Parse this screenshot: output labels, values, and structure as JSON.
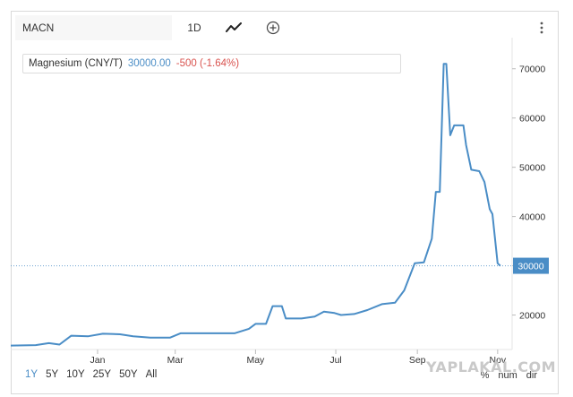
{
  "toolbar": {
    "symbol": "MACN",
    "interval_label": "1D",
    "chart_type_icon": "line-chart-icon",
    "compare_icon": "plus-circle-icon",
    "menu_icon": "more-vertical-icon"
  },
  "legend": {
    "name": "Magnesium (CNY/T)",
    "value": "30000.00",
    "change": "-500 (-1.64%)"
  },
  "colors": {
    "line": "#4a8dc6",
    "last_price_bg": "#4a8dc6",
    "change_negative": "#d9534f"
  },
  "ranges": {
    "items": [
      "1Y",
      "5Y",
      "10Y",
      "25Y",
      "50Y",
      "All"
    ],
    "active": "1Y"
  },
  "scales": {
    "items": [
      "%",
      "num",
      "dir"
    ]
  },
  "watermark": "YAPLAKAL.COM",
  "chart_data": {
    "type": "line",
    "title": "",
    "xlabel": "",
    "ylabel": "",
    "x_ticks": [
      {
        "label": "Jan",
        "date": "2021-01-01"
      },
      {
        "label": "Mar",
        "date": "2021-03-01"
      },
      {
        "label": "May",
        "date": "2021-05-01"
      },
      {
        "label": "Jul",
        "date": "2021-07-01"
      },
      {
        "label": "Sep",
        "date": "2021-09-01"
      },
      {
        "label": "Nov",
        "date": "2021-11-01"
      }
    ],
    "y_ticks": [
      20000,
      30000,
      40000,
      50000,
      60000,
      70000
    ],
    "x_range": [
      "2020-10-27",
      "2021-11-12"
    ],
    "ylim": [
      13000,
      74500
    ],
    "last_price_label": "30000",
    "last_price": 30000,
    "grid": false,
    "axis_side": "right",
    "series": [
      {
        "points": [
          [
            "2020-10-27",
            13800
          ],
          [
            "2020-11-15",
            13900
          ],
          [
            "2020-11-25",
            14300
          ],
          [
            "2020-12-03",
            14000
          ],
          [
            "2020-12-12",
            15800
          ],
          [
            "2020-12-25",
            15700
          ],
          [
            "2021-01-05",
            16200
          ],
          [
            "2021-01-18",
            16100
          ],
          [
            "2021-01-28",
            15700
          ],
          [
            "2021-02-10",
            15400
          ],
          [
            "2021-02-25",
            15400
          ],
          [
            "2021-03-05",
            16300
          ],
          [
            "2021-03-25",
            16300
          ],
          [
            "2021-04-15",
            16300
          ],
          [
            "2021-04-26",
            17200
          ],
          [
            "2021-05-01",
            18200
          ],
          [
            "2021-05-09",
            18200
          ],
          [
            "2021-05-14",
            21800
          ],
          [
            "2021-05-21",
            21800
          ],
          [
            "2021-05-24",
            19300
          ],
          [
            "2021-06-05",
            19300
          ],
          [
            "2021-06-15",
            19700
          ],
          [
            "2021-06-22",
            20700
          ],
          [
            "2021-06-30",
            20400
          ],
          [
            "2021-07-05",
            20000
          ],
          [
            "2021-07-15",
            20200
          ],
          [
            "2021-07-25",
            21000
          ],
          [
            "2021-08-05",
            22200
          ],
          [
            "2021-08-15",
            22500
          ],
          [
            "2021-08-22",
            25000
          ],
          [
            "2021-08-30",
            30500
          ],
          [
            "2021-09-06",
            30700
          ],
          [
            "2021-09-12",
            35500
          ],
          [
            "2021-09-15",
            45000
          ],
          [
            "2021-09-18",
            45000
          ],
          [
            "2021-09-21",
            71000
          ],
          [
            "2021-09-23",
            71000
          ],
          [
            "2021-09-26",
            56500
          ],
          [
            "2021-09-29",
            58500
          ],
          [
            "2021-10-06",
            58500
          ],
          [
            "2021-10-08",
            54500
          ],
          [
            "2021-10-12",
            49500
          ],
          [
            "2021-10-18",
            49200
          ],
          [
            "2021-10-22",
            47000
          ],
          [
            "2021-10-26",
            41500
          ],
          [
            "2021-10-28",
            40500
          ],
          [
            "2021-11-01",
            30500
          ],
          [
            "2021-11-03",
            30000
          ]
        ]
      }
    ]
  }
}
